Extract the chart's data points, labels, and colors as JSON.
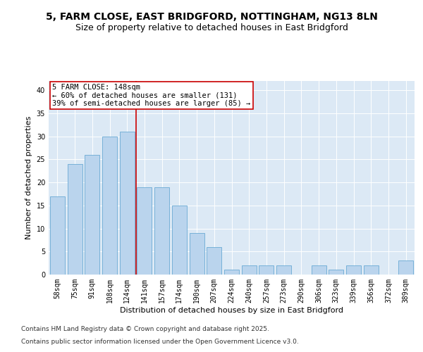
{
  "title_line1": "5, FARM CLOSE, EAST BRIDGFORD, NOTTINGHAM, NG13 8LN",
  "title_line2": "Size of property relative to detached houses in East Bridgford",
  "xlabel": "Distribution of detached houses by size in East Bridgford",
  "ylabel": "Number of detached properties",
  "categories": [
    "58sqm",
    "75sqm",
    "91sqm",
    "108sqm",
    "124sqm",
    "141sqm",
    "157sqm",
    "174sqm",
    "190sqm",
    "207sqm",
    "224sqm",
    "240sqm",
    "257sqm",
    "273sqm",
    "290sqm",
    "306sqm",
    "323sqm",
    "339sqm",
    "356sqm",
    "372sqm",
    "389sqm"
  ],
  "values": [
    17,
    24,
    26,
    30,
    31,
    19,
    19,
    15,
    9,
    6,
    1,
    2,
    2,
    2,
    0,
    2,
    1,
    2,
    2,
    0,
    3
  ],
  "bar_color": "#bad4ed",
  "bar_edge_color": "#6aaad4",
  "marker_line_color": "#cc0000",
  "annotation_box_color": "#ffffff",
  "annotation_box_edge": "#cc0000",
  "marker_label": "5 FARM CLOSE: 148sqm",
  "annotation_line1": "← 60% of detached houses are smaller (131)",
  "annotation_line2": "39% of semi-detached houses are larger (85) →",
  "ylim": [
    0,
    42
  ],
  "yticks": [
    0,
    5,
    10,
    15,
    20,
    25,
    30,
    35,
    40
  ],
  "plot_bg_color": "#dce9f5",
  "footer_line1": "Contains HM Land Registry data © Crown copyright and database right 2025.",
  "footer_line2": "Contains public sector information licensed under the Open Government Licence v3.0.",
  "title_fontsize": 10,
  "subtitle_fontsize": 9,
  "axis_label_fontsize": 8,
  "tick_fontsize": 7,
  "annotation_fontsize": 7.5,
  "footer_fontsize": 6.5
}
